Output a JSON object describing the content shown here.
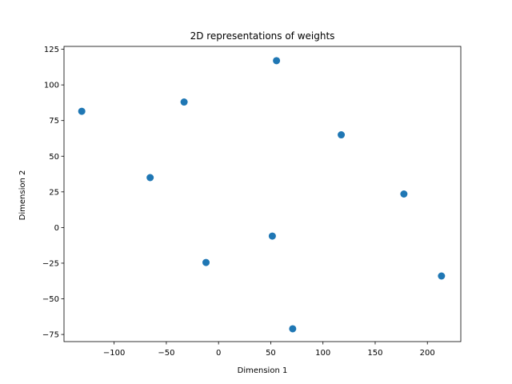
{
  "chart_data": {
    "type": "scatter",
    "title": "2D representations of weights",
    "xlabel": "Dimension 1",
    "ylabel": "Dimension 2",
    "xlim": [
      -148,
      232
    ],
    "ylim": [
      -80,
      127
    ],
    "xticks": [
      -100,
      -50,
      0,
      50,
      100,
      150,
      200
    ],
    "xtick_labels": [
      "−100",
      "−50",
      "0",
      "50",
      "100",
      "150",
      "200"
    ],
    "yticks": [
      -75,
      -50,
      -25,
      0,
      25,
      50,
      75,
      100,
      125
    ],
    "ytick_labels": [
      "−75",
      "−50",
      "−25",
      "0",
      "25",
      "50",
      "75",
      "100",
      "125"
    ],
    "grid": false,
    "marker_color": "#1f77b4",
    "points": [
      {
        "x": -131,
        "y": 81.5
      },
      {
        "x": -33,
        "y": 88
      },
      {
        "x": 55.5,
        "y": 117
      },
      {
        "x": 117.5,
        "y": 65
      },
      {
        "x": -65.5,
        "y": 35
      },
      {
        "x": 177.5,
        "y": 23.5
      },
      {
        "x": 51.5,
        "y": -6
      },
      {
        "x": -12,
        "y": -24.5
      },
      {
        "x": 213.5,
        "y": -34
      },
      {
        "x": 71,
        "y": -71
      }
    ]
  }
}
